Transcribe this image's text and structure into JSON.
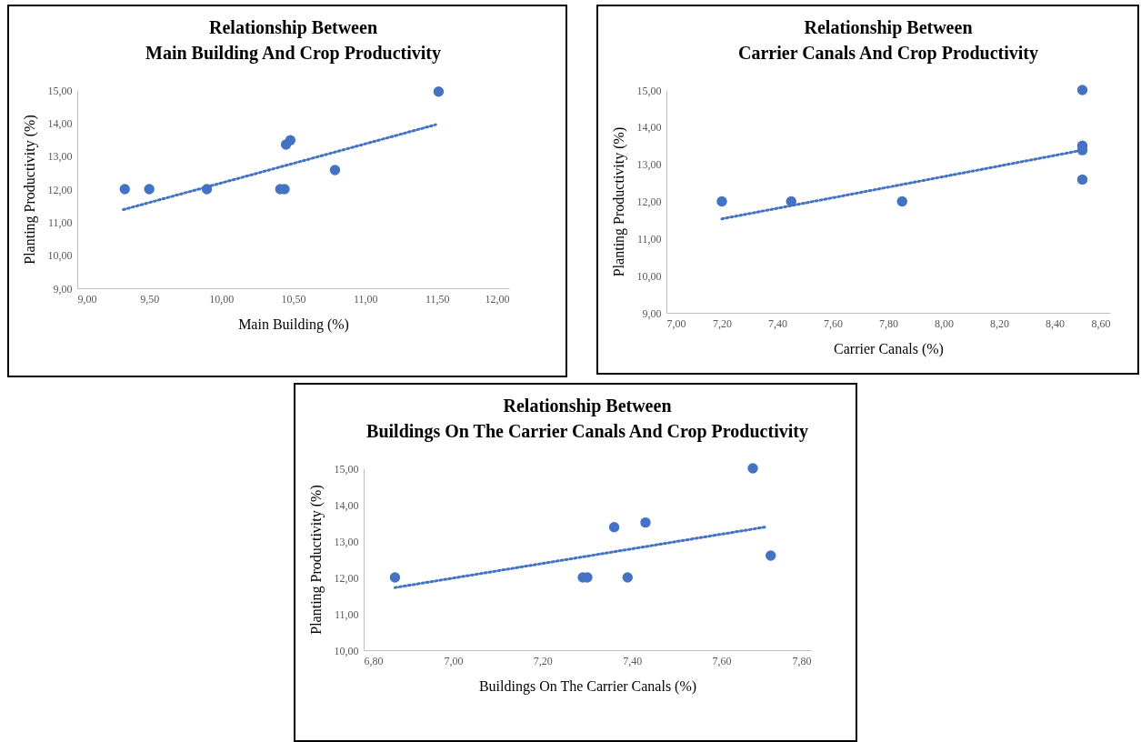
{
  "chart_data": [
    {
      "type": "scatter",
      "title": "Relationship Between\nMain Building And Crop Productivity",
      "xlabel": "Main Building (%)",
      "ylabel": "Planting Productivity (%)",
      "xlim": [
        9,
        12
      ],
      "ylim": [
        9,
        15
      ],
      "xticks": [
        {
          "value": 9,
          "label": "9,00"
        },
        {
          "value": 9.5,
          "label": "9,50"
        },
        {
          "value": 10,
          "label": "10,00"
        },
        {
          "value": 10.5,
          "label": "10,50"
        },
        {
          "value": 11,
          "label": "11,00"
        },
        {
          "value": 11.5,
          "label": "11,50"
        },
        {
          "value": 12,
          "label": "12,00"
        }
      ],
      "yticks": [
        {
          "value": 9,
          "label": "9,00"
        },
        {
          "value": 10,
          "label": "10,00"
        },
        {
          "value": 11,
          "label": "11,00"
        },
        {
          "value": 12,
          "label": "12,00"
        },
        {
          "value": 13,
          "label": "13,00"
        },
        {
          "value": 14,
          "label": "14,00"
        },
        {
          "value": 15,
          "label": "15,00"
        }
      ],
      "grid": false,
      "series": [
        {
          "marker": "circle",
          "color": "#4472c4",
          "x": [
            9.33,
            9.5,
            9.9,
            10.41,
            10.44,
            10.45,
            10.48,
            10.79,
            11.51
          ],
          "values": [
            12,
            12,
            12,
            12,
            12,
            13.35,
            13.48,
            12.58,
            14.95
          ]
        },
        {
          "type": "line",
          "color": "#4472c4",
          "line_style": "dotted",
          "x": [
            9.32,
            11.49
          ],
          "values": [
            11.38,
            13.95
          ]
        }
      ]
    },
    {
      "type": "scatter",
      "title": "Relationship Between\nCarrier Canals And Crop Productivity",
      "xlabel": "Carrier Canals (%)",
      "ylabel": "Planting Productivity (%)",
      "xlim": [
        7,
        8.6
      ],
      "ylim": [
        9,
        15
      ],
      "xticks": [
        {
          "value": 7,
          "label": "7,00"
        },
        {
          "value": 7.2,
          "label": "7,20"
        },
        {
          "value": 7.4,
          "label": "7,40"
        },
        {
          "value": 7.6,
          "label": "7,60"
        },
        {
          "value": 7.8,
          "label": "7,80"
        },
        {
          "value": 8,
          "label": "8,00"
        },
        {
          "value": 8.2,
          "label": "8,20"
        },
        {
          "value": 8.4,
          "label": "8,40"
        },
        {
          "value": 8.6,
          "label": "8,60"
        }
      ],
      "yticks": [
        {
          "value": 9,
          "label": "9,00"
        },
        {
          "value": 10,
          "label": "10,00"
        },
        {
          "value": 11,
          "label": "11,00"
        },
        {
          "value": 12,
          "label": "12,00"
        },
        {
          "value": 13,
          "label": "13,00"
        },
        {
          "value": 14,
          "label": "14,00"
        },
        {
          "value": 15,
          "label": "15,00"
        }
      ],
      "grid": false,
      "series": [
        {
          "marker": "circle",
          "color": "#4472c4",
          "x": [
            7.2,
            7.45,
            7.85,
            8.5,
            8.5,
            8.5,
            8.5
          ],
          "values": [
            12,
            12,
            12,
            15,
            13.5,
            13.38,
            12.59
          ]
        },
        {
          "type": "line",
          "color": "#4472c4",
          "line_style": "dotted",
          "x": [
            7.2,
            8.5
          ],
          "values": [
            11.53,
            13.38
          ]
        }
      ]
    },
    {
      "type": "scatter",
      "title": "Relationship Between\nBuildings On The Carrier Canals And Crop Productivity",
      "xlabel": "Buildings On The Carrier Canals (%)",
      "ylabel": "Planting Productivity (%)",
      "xlim": [
        6.8,
        7.8
      ],
      "ylim": [
        10,
        15
      ],
      "xticks": [
        {
          "value": 6.8,
          "label": "6,80"
        },
        {
          "value": 7,
          "label": "7,00"
        },
        {
          "value": 7.2,
          "label": "7,20"
        },
        {
          "value": 7.4,
          "label": "7,40"
        },
        {
          "value": 7.6,
          "label": "7,60"
        },
        {
          "value": 7.8,
          "label": "7,80"
        }
      ],
      "yticks": [
        {
          "value": 10,
          "label": "10,00"
        },
        {
          "value": 11,
          "label": "11,00"
        },
        {
          "value": 12,
          "label": "12,00"
        },
        {
          "value": 13,
          "label": "13,00"
        },
        {
          "value": 14,
          "label": "14,00"
        },
        {
          "value": 15,
          "label": "15,00"
        }
      ],
      "grid": false,
      "series": [
        {
          "marker": "circle",
          "color": "#4472c4",
          "x": [
            6.87,
            7.29,
            7.3,
            7.39,
            7.36,
            7.43,
            7.67,
            7.71
          ],
          "values": [
            12,
            12,
            12,
            12,
            13.38,
            13.51,
            15,
            12.6
          ]
        },
        {
          "type": "line",
          "color": "#4472c4",
          "line_style": "dotted",
          "x": [
            6.87,
            7.7
          ],
          "values": [
            11.72,
            13.39
          ]
        }
      ]
    }
  ]
}
